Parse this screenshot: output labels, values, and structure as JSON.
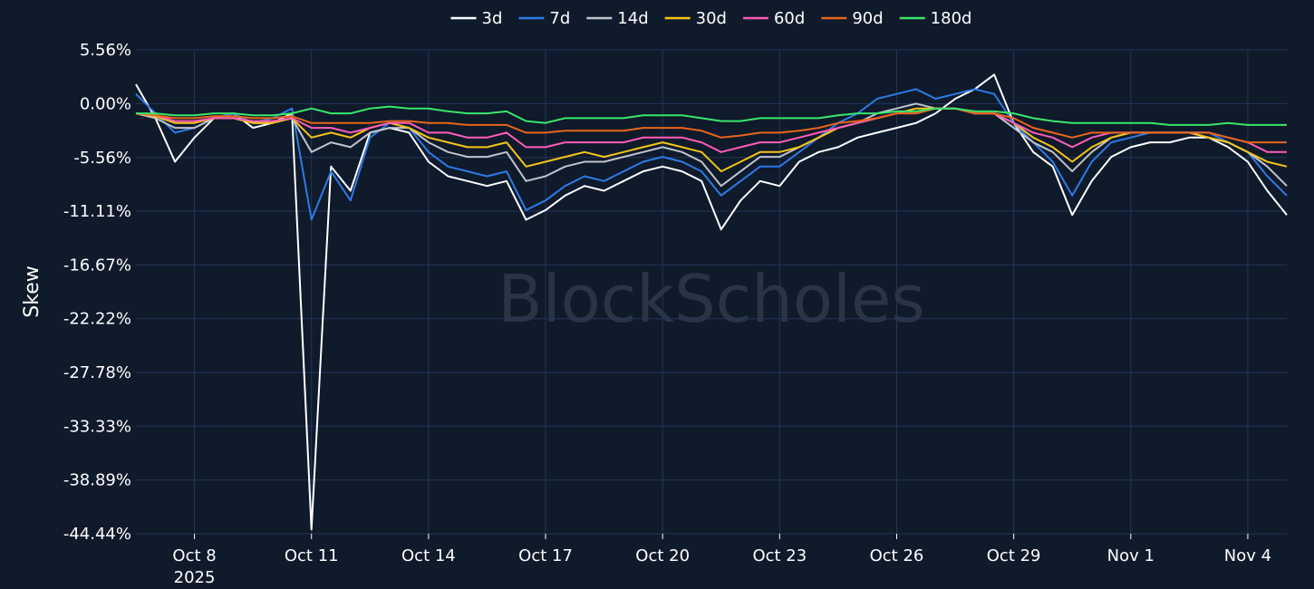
{
  "chart_data": {
    "type": "line",
    "title": "",
    "xlabel": "",
    "ylabel": "Skew",
    "watermark": "BlockScholes",
    "ylim": [
      -44.44,
      5.56
    ],
    "y_ticks": [
      "5.56%",
      "0.00%",
      "-5.56%",
      "-11.11%",
      "-16.67%",
      "-22.22%",
      "-27.78%",
      "-33.33%",
      "-38.89%",
      "-44.44%"
    ],
    "y_tick_values": [
      5.56,
      0,
      -5.56,
      -11.11,
      -16.67,
      -22.22,
      -27.78,
      -33.33,
      -38.89,
      -44.44
    ],
    "x_range": [
      "2025-10-06T12:00",
      "2025-11-05T00:00"
    ],
    "x_ticks": [
      {
        "date": "2025-10-08",
        "label": "Oct 8",
        "sublabel": "2025"
      },
      {
        "date": "2025-10-11",
        "label": "Oct 11",
        "sublabel": ""
      },
      {
        "date": "2025-10-14",
        "label": "Oct 14",
        "sublabel": ""
      },
      {
        "date": "2025-10-17",
        "label": "Oct 17",
        "sublabel": ""
      },
      {
        "date": "2025-10-20",
        "label": "Oct 20",
        "sublabel": ""
      },
      {
        "date": "2025-10-23",
        "label": "Oct 23",
        "sublabel": ""
      },
      {
        "date": "2025-10-26",
        "label": "Oct 26",
        "sublabel": ""
      },
      {
        "date": "2025-10-29",
        "label": "Oct 29",
        "sublabel": ""
      },
      {
        "date": "2025-11-01",
        "label": "Nov 1",
        "sublabel": ""
      },
      {
        "date": "2025-11-04",
        "label": "Nov 4",
        "sublabel": ""
      }
    ],
    "legend_position": "top-center",
    "grid": true,
    "x": [
      "2025-10-06T12:00",
      "2025-10-07T00:00",
      "2025-10-07T12:00",
      "2025-10-08T00:00",
      "2025-10-08T12:00",
      "2025-10-09T00:00",
      "2025-10-09T12:00",
      "2025-10-10T00:00",
      "2025-10-10T12:00",
      "2025-10-11T00:00",
      "2025-10-11T12:00",
      "2025-10-12T00:00",
      "2025-10-12T12:00",
      "2025-10-13T00:00",
      "2025-10-13T12:00",
      "2025-10-14T00:00",
      "2025-10-14T12:00",
      "2025-10-15T00:00",
      "2025-10-15T12:00",
      "2025-10-16T00:00",
      "2025-10-16T12:00",
      "2025-10-17T00:00",
      "2025-10-17T12:00",
      "2025-10-18T00:00",
      "2025-10-18T12:00",
      "2025-10-19T00:00",
      "2025-10-19T12:00",
      "2025-10-20T00:00",
      "2025-10-20T12:00",
      "2025-10-21T00:00",
      "2025-10-21T12:00",
      "2025-10-22T00:00",
      "2025-10-22T12:00",
      "2025-10-23T00:00",
      "2025-10-23T12:00",
      "2025-10-24T00:00",
      "2025-10-24T12:00",
      "2025-10-25T00:00",
      "2025-10-25T12:00",
      "2025-10-26T00:00",
      "2025-10-26T12:00",
      "2025-10-27T00:00",
      "2025-10-27T12:00",
      "2025-10-28T00:00",
      "2025-10-28T12:00",
      "2025-10-29T00:00",
      "2025-10-29T12:00",
      "2025-10-30T00:00",
      "2025-10-30T12:00",
      "2025-10-31T00:00",
      "2025-10-31T12:00",
      "2025-11-01T00:00",
      "2025-11-01T12:00",
      "2025-11-02T00:00",
      "2025-11-02T12:00",
      "2025-11-03T00:00",
      "2025-11-03T12:00",
      "2025-11-04T00:00",
      "2025-11-04T12:00",
      "2025-11-05T00:00"
    ],
    "series": [
      {
        "name": "3d",
        "color": "#ffffff",
        "values": [
          2.0,
          -1.5,
          -6.0,
          -3.5,
          -1.5,
          -1.0,
          -2.5,
          -2.0,
          -1.0,
          -44.0,
          -6.5,
          -9.0,
          -3.0,
          -2.5,
          -3.0,
          -6.0,
          -7.5,
          -8.0,
          -8.5,
          -8.0,
          -12.0,
          -11.0,
          -9.5,
          -8.5,
          -9.0,
          -8.0,
          -7.0,
          -6.5,
          -7.0,
          -8.0,
          -13.0,
          -10.0,
          -8.0,
          -8.5,
          -6.0,
          -5.0,
          -4.5,
          -3.5,
          -3.0,
          -2.5,
          -2.0,
          -1.0,
          0.5,
          1.5,
          3.0,
          -2.0,
          -5.0,
          -6.5,
          -11.5,
          -8.0,
          -5.5,
          -4.5,
          -4.0,
          -4.0,
          -3.5,
          -3.5,
          -4.5,
          -6.0,
          -9.0,
          -11.5
        ]
      },
      {
        "name": "7d",
        "color": "#2c7be5",
        "values": [
          1.0,
          -1.0,
          -3.0,
          -2.5,
          -1.5,
          -1.0,
          -2.0,
          -1.5,
          -0.5,
          -12.0,
          -7.0,
          -10.0,
          -3.5,
          -2.0,
          -2.5,
          -5.0,
          -6.5,
          -7.0,
          -7.5,
          -7.0,
          -11.0,
          -10.0,
          -8.5,
          -7.5,
          -8.0,
          -7.0,
          -6.0,
          -5.5,
          -6.0,
          -7.0,
          -9.5,
          -8.0,
          -6.5,
          -6.5,
          -5.0,
          -3.5,
          -2.0,
          -1.0,
          0.5,
          1.0,
          1.5,
          0.5,
          1.0,
          1.5,
          1.0,
          -2.0,
          -4.0,
          -6.0,
          -9.5,
          -6.0,
          -4.0,
          -3.5,
          -3.0,
          -3.0,
          -3.0,
          -3.0,
          -4.0,
          -5.0,
          -7.5,
          -9.5
        ]
      },
      {
        "name": "14d",
        "color": "#c0c4cc",
        "values": [
          -1.0,
          -1.5,
          -2.5,
          -2.5,
          -1.5,
          -1.5,
          -2.0,
          -2.0,
          -1.5,
          -5.0,
          -4.0,
          -4.5,
          -3.0,
          -2.5,
          -2.5,
          -4.0,
          -5.0,
          -5.5,
          -5.5,
          -5.0,
          -8.0,
          -7.5,
          -6.5,
          -6.0,
          -6.0,
          -5.5,
          -5.0,
          -4.5,
          -5.0,
          -6.0,
          -8.5,
          -7.0,
          -5.5,
          -5.5,
          -4.5,
          -3.5,
          -2.5,
          -2.0,
          -1.0,
          -0.5,
          0.0,
          -0.5,
          -0.5,
          -1.0,
          -1.0,
          -2.5,
          -4.0,
          -5.0,
          -7.0,
          -5.0,
          -3.5,
          -3.0,
          -3.0,
          -3.0,
          -3.0,
          -3.5,
          -4.0,
          -5.0,
          -6.5,
          -8.5
        ]
      },
      {
        "name": "30d",
        "color": "#f5c518",
        "values": [
          -1.0,
          -1.3,
          -2.0,
          -2.0,
          -1.5,
          -1.5,
          -2.0,
          -2.0,
          -1.5,
          -3.5,
          -3.0,
          -3.5,
          -2.5,
          -2.0,
          -2.5,
          -3.5,
          -4.0,
          -4.5,
          -4.5,
          -4.0,
          -6.5,
          -6.0,
          -5.5,
          -5.0,
          -5.5,
          -5.0,
          -4.5,
          -4.0,
          -4.5,
          -5.0,
          -7.0,
          -6.0,
          -5.0,
          -5.0,
          -4.5,
          -3.5,
          -2.5,
          -2.0,
          -1.5,
          -1.0,
          -0.5,
          -0.5,
          -0.5,
          -1.0,
          -1.0,
          -2.0,
          -3.5,
          -4.5,
          -6.0,
          -4.5,
          -3.5,
          -3.0,
          -3.0,
          -3.0,
          -3.0,
          -3.5,
          -4.0,
          -5.0,
          -6.0,
          -6.5
        ]
      },
      {
        "name": "60d",
        "color": "#ff5cb8",
        "values": [
          -1.0,
          -1.2,
          -1.8,
          -1.8,
          -1.5,
          -1.5,
          -1.8,
          -1.8,
          -1.5,
          -2.5,
          -2.5,
          -3.0,
          -2.5,
          -2.0,
          -2.0,
          -3.0,
          -3.0,
          -3.5,
          -3.5,
          -3.0,
          -4.5,
          -4.5,
          -4.0,
          -4.0,
          -4.0,
          -4.0,
          -3.5,
          -3.5,
          -3.5,
          -4.0,
          -5.0,
          -4.5,
          -4.0,
          -4.0,
          -3.5,
          -3.0,
          -2.5,
          -2.0,
          -1.5,
          -1.0,
          -1.0,
          -0.5,
          -0.5,
          -1.0,
          -1.0,
          -2.0,
          -3.0,
          -3.5,
          -4.5,
          -3.5,
          -3.0,
          -3.0,
          -3.0,
          -3.0,
          -3.0,
          -3.0,
          -3.5,
          -4.0,
          -5.0,
          -5.0
        ]
      },
      {
        "name": "90d",
        "color": "#e8651a",
        "values": [
          -1.0,
          -1.2,
          -1.5,
          -1.5,
          -1.3,
          -1.3,
          -1.5,
          -1.5,
          -1.3,
          -2.0,
          -2.0,
          -2.0,
          -2.0,
          -1.8,
          -1.8,
          -2.0,
          -2.0,
          -2.2,
          -2.2,
          -2.2,
          -3.0,
          -3.0,
          -2.8,
          -2.8,
          -2.8,
          -2.8,
          -2.5,
          -2.5,
          -2.5,
          -2.8,
          -3.5,
          -3.3,
          -3.0,
          -3.0,
          -2.8,
          -2.5,
          -2.0,
          -1.8,
          -1.5,
          -1.0,
          -1.0,
          -0.5,
          -0.5,
          -1.0,
          -1.0,
          -1.5,
          -2.5,
          -3.0,
          -3.5,
          -3.0,
          -3.0,
          -3.0,
          -3.0,
          -3.0,
          -3.0,
          -3.0,
          -3.5,
          -4.0,
          -4.0,
          -4.0
        ]
      },
      {
        "name": "180d",
        "color": "#39e66a",
        "values": [
          -1.0,
          -1.0,
          -1.2,
          -1.2,
          -1.0,
          -1.0,
          -1.2,
          -1.2,
          -1.0,
          -0.5,
          -1.0,
          -1.0,
          -0.5,
          -0.3,
          -0.5,
          -0.5,
          -0.8,
          -1.0,
          -1.0,
          -0.8,
          -1.8,
          -2.0,
          -1.5,
          -1.5,
          -1.5,
          -1.5,
          -1.2,
          -1.2,
          -1.2,
          -1.5,
          -1.8,
          -1.8,
          -1.5,
          -1.5,
          -1.5,
          -1.5,
          -1.2,
          -1.0,
          -1.0,
          -0.8,
          -0.8,
          -0.5,
          -0.5,
          -0.8,
          -0.8,
          -1.0,
          -1.5,
          -1.8,
          -2.0,
          -2.0,
          -2.0,
          -2.0,
          -2.0,
          -2.2,
          -2.2,
          -2.2,
          -2.0,
          -2.2,
          -2.2,
          -2.2
        ]
      }
    ]
  }
}
